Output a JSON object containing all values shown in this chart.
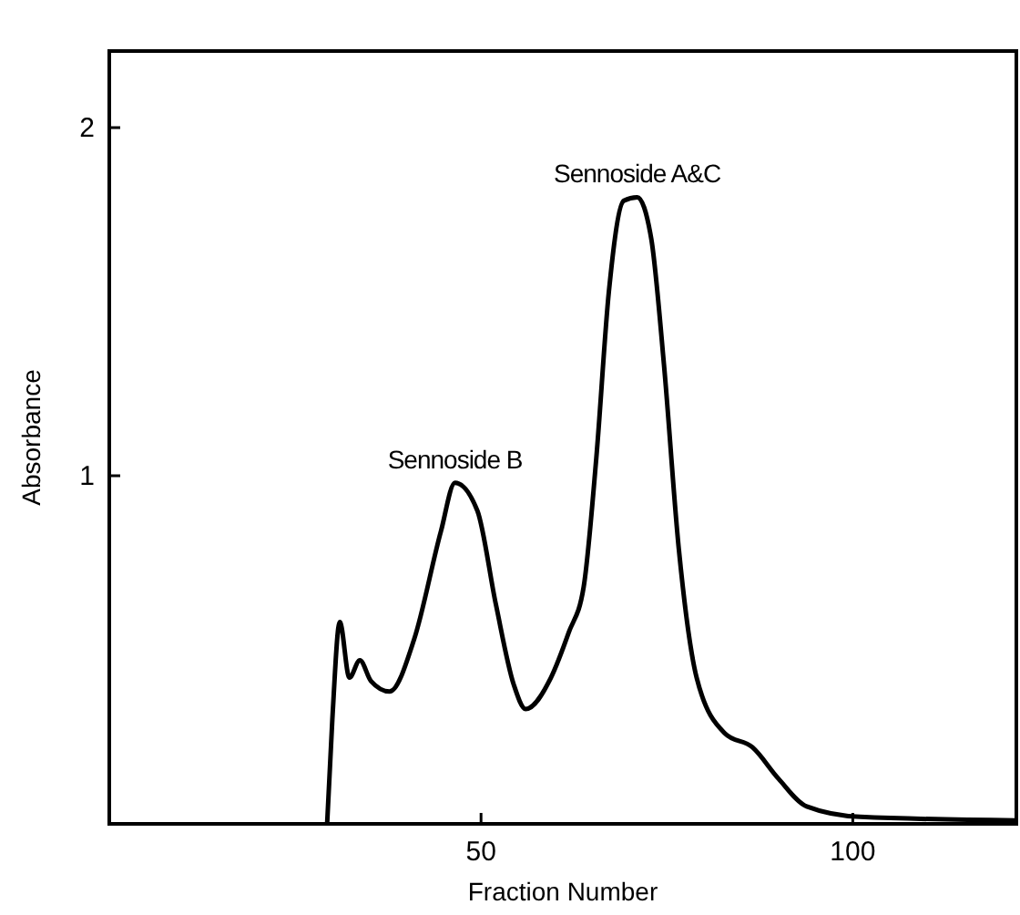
{
  "chart_data": {
    "type": "line",
    "xlabel": "Fraction  Number",
    "ylabel": "Absorbance",
    "xlim": [
      0,
      122
    ],
    "ylim": [
      0,
      2.22
    ],
    "xticks": [
      50,
      100
    ],
    "yticks": [
      1,
      2
    ],
    "grid": false,
    "line_style": "solid",
    "series": [
      {
        "color": "#000000",
        "x": [
          29.3,
          30,
          31,
          32.3,
          33.7,
          35.2,
          37.7,
          41,
          44.6,
          46.5,
          49.5,
          52,
          54.4,
          56,
          59.4,
          61.8,
          63.8,
          65.5,
          67.2,
          69.2,
          71,
          72.9,
          74.6,
          76.6,
          79,
          82.8,
          86.5,
          90,
          93.8,
          101,
          122
        ],
        "values": [
          0,
          0.3,
          0.58,
          0.42,
          0.47,
          0.41,
          0.38,
          0.53,
          0.84,
          0.98,
          0.9,
          0.63,
          0.4,
          0.33,
          0.42,
          0.55,
          0.68,
          1.05,
          1.53,
          1.79,
          1.8,
          1.68,
          1.32,
          0.79,
          0.42,
          0.26,
          0.22,
          0.13,
          0.05,
          0.02,
          0.01
        ]
      }
    ],
    "annotations": [
      {
        "text": "Sennoside B",
        "x": 46.5,
        "y": 0.98
      },
      {
        "text": "Sennoside A&C",
        "x": 71,
        "y": 1.8
      }
    ]
  }
}
